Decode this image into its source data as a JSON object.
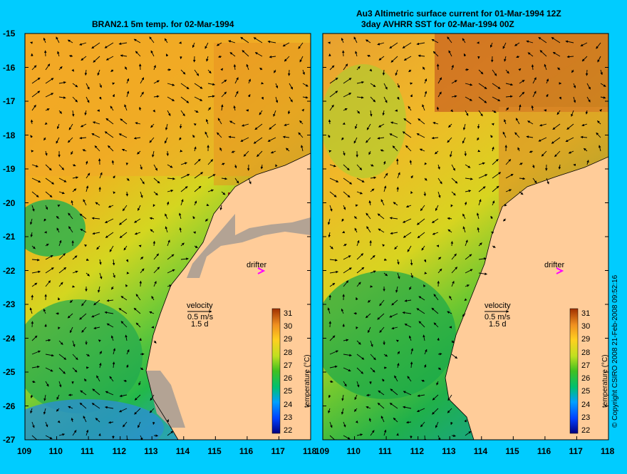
{
  "left_panel": {
    "title": "BRAN2.1 5m temp. for 02-Mar-1994",
    "velocity_label": "velocity",
    "velocity_scale": "0.5 m/s",
    "velocity_days": "1.5 d",
    "drifter_label": "drifter"
  },
  "right_panel": {
    "title_line1": "Au3 Altimetric surface current for 01-Mar-1994 12Z",
    "title_line2": "3day AVHRR SST for 02-Mar-1994 00Z",
    "velocity_label": "velocity",
    "velocity_scale": "0.5 m/s",
    "velocity_days": "1.5 d",
    "drifter_label": "drifter"
  },
  "axes": {
    "lat_ticks": [
      "-15",
      "-16",
      "-17",
      "-18",
      "-19",
      "-20",
      "-21",
      "-22",
      "-23",
      "-24",
      "-25",
      "-26",
      "-27"
    ],
    "lon_ticks": [
      "109",
      "110",
      "111",
      "112",
      "113",
      "114",
      "115",
      "116",
      "117",
      "118"
    ]
  },
  "colorbar": {
    "label": "temperature (°C)",
    "ticks": [
      "31",
      "30",
      "29",
      "28",
      "27",
      "26",
      "25",
      "24",
      "23",
      "22"
    ]
  },
  "copyright": "© Copyright CSIRO 2008   21-Feb-2008 09:52:16",
  "colors": {
    "background": "#00ccff",
    "land": "#ffcc99",
    "drifter": "#ff00ff",
    "land_mask": "#b3a394"
  }
}
